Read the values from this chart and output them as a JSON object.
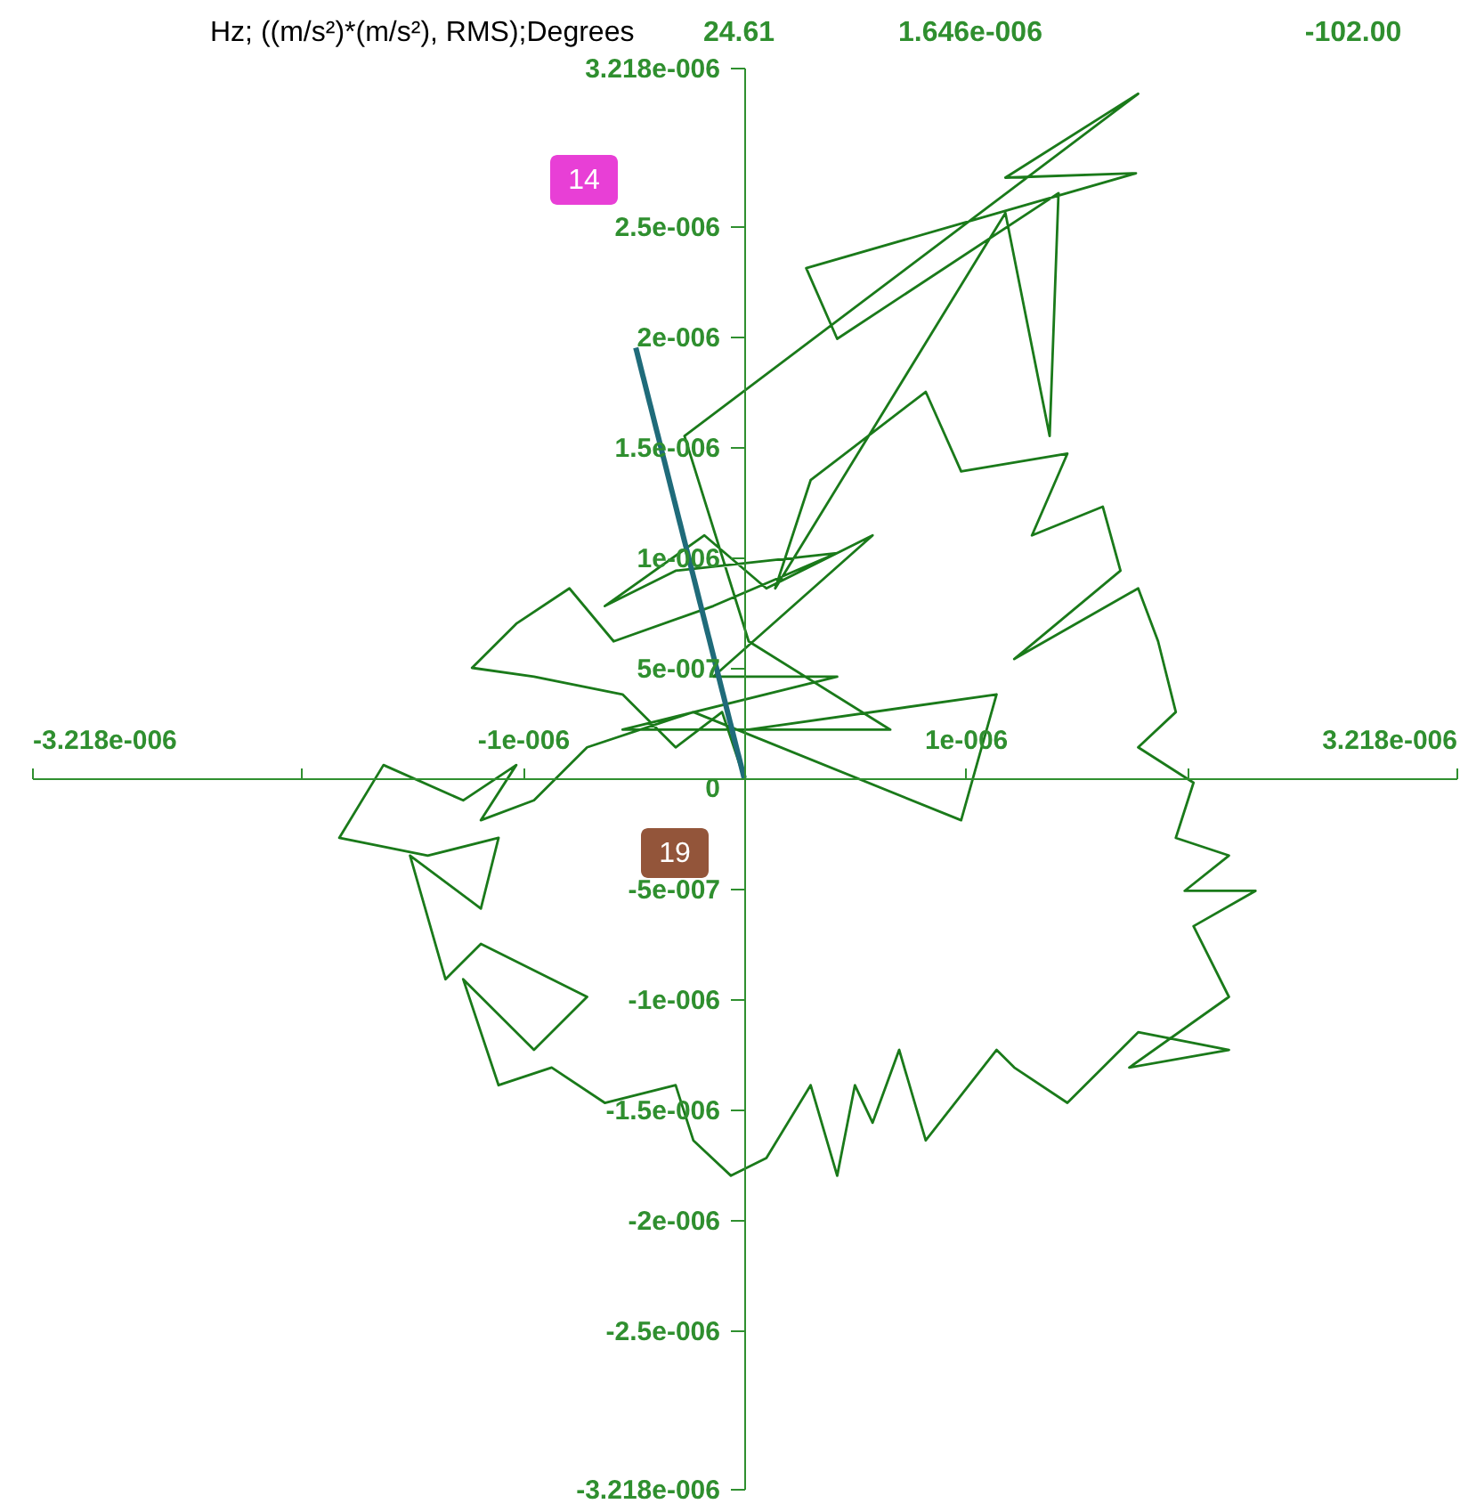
{
  "chart_data": {
    "type": "line",
    "title": "Hz; ((m/s²)*(m/s²), RMS);Degrees",
    "annotations": [
      "24.61",
      "1.646e-006",
      "-102.00",
      "14",
      "19"
    ],
    "xlim": [
      -3.218e-06,
      3.218e-06
    ],
    "xticks": [
      {
        "value": -3.218e-06,
        "label": "-3.218e-006"
      },
      {
        "value": -2e-06,
        "label": null
      },
      {
        "value": -1e-06,
        "label": "-1e-006"
      },
      {
        "value": 1e-06,
        "label": "1e-006"
      },
      {
        "value": 2e-06,
        "label": null
      },
      {
        "value": 3.218e-06,
        "label": "3.218e-006"
      }
    ],
    "ylim": [
      -3.218e-06,
      3.218e-06
    ],
    "yticks": [
      {
        "value": -3.218e-06,
        "label": "-3.218e-006"
      },
      {
        "value": -2.5e-06,
        "label": "-2.5e-006"
      },
      {
        "value": -2e-06,
        "label": "-2e-006"
      },
      {
        "value": -1.5e-06,
        "label": "-1.5e-006"
      },
      {
        "value": -1e-06,
        "label": "-1e-006"
      },
      {
        "value": -5e-07,
        "label": "-5e-007"
      },
      0,
      {
        "value": 5e-07,
        "label": "5e-007"
      },
      {
        "value": 1e-06,
        "label": "1e-006"
      },
      {
        "value": 1.5e-06,
        "label": "1.5e-006"
      },
      {
        "value": 2e-06,
        "label": "2e-006"
      },
      {
        "value": 2.5e-06,
        "label": "2.5e-006"
      },
      {
        "value": 3.218e-06,
        "label": "3.218e-006"
      }
    ],
    "grid": false,
    "series": [
      {
        "color": "#1a7a1a",
        "x": [
          0,
          -1e-07,
          -3.1e-07,
          -5.5e-07,
          -9.5e-07,
          -1.23e-06,
          -1.03e-06,
          -7.9e-07,
          -5.9e-07,
          -1.4e-07,
          4.2e-07,
          -3.1e-07,
          -6.3e-07,
          -1.8e-07,
          1e-07,
          5.8e-07,
          -1.4e-07,
          4.2e-07,
          -5.5e-07,
          6.6e-07,
          2e-08,
          -2.7e-07,
          1.78e-06,
          1.18e-06,
          1.77e-06,
          2.8e-07,
          4.2e-07,
          1.42e-06,
          1.38e-06,
          1.18e-06,
          1.4e-07,
          3e-07,
          8.2e-07,
          9.8e-07,
          1.46e-06,
          1.3e-06,
          1.62e-06,
          1.7e-06,
          1.22e-06,
          1.78e-06,
          1.87e-06,
          1.95e-06,
          1.78e-06,
          2.03e-06,
          1.95e-06,
          2.19e-06,
          1.99e-06,
          2.31e-06,
          2.03e-06,
          2.19e-06,
          1.74e-06,
          2.19e-06,
          1.78e-06,
          1.46e-06,
          1.22e-06,
          1.14e-06,
          8.2e-07,
          7e-07,
          5.8e-07,
          5e-07,
          4.2e-07,
          3e-07,
          1e-07,
          -6e-08,
          -2.3e-07,
          -3.1e-07,
          -6.3e-07,
          -8.7e-07,
          -1.11e-06,
          -1.27e-06,
          -9.5e-07,
          -7.1e-07,
          -1.19e-06,
          -1.35e-06,
          -1.51e-06,
          -1.19e-06,
          -1.11e-06,
          -1.43e-06,
          -1.83e-06,
          -1.63e-06,
          -1.27e-06,
          -1.03e-06,
          -1.19e-06,
          -9.5e-07,
          -7.1e-07,
          -2.3e-07,
          9.8e-07,
          1.14e-06,
          2e-08
        ],
        "values": [
          0,
          3e-07,
          1.4e-07,
          3.8e-07,
          4.6e-07,
          5e-07,
          7e-07,
          8.6e-07,
          6.2e-07,
          7.8e-07,
          1.02e-06,
          9.4e-07,
          7.8e-07,
          1.1e-06,
          8.6e-07,
          1.1e-06,
          4.6e-07,
          4.6e-07,
          2.2e-07,
          2.2e-07,
          6.2e-07,
          1.55e-06,
          3.1e-06,
          2.72e-06,
          2.74e-06,
          2.31e-06,
          1.99e-06,
          2.65e-06,
          1.55e-06,
          2.56e-06,
          8.6e-07,
          1.35e-06,
          1.75e-06,
          1.39e-06,
          1.47e-06,
          1.1e-06,
          1.23e-06,
          9.4e-07,
          5.4e-07,
          8.6e-07,
          6.2e-07,
          3e-07,
          1.4e-07,
          -2e-08,
          -2.7e-07,
          -3.5e-07,
          -5.1e-07,
          -5.1e-07,
          -6.7e-07,
          -9.9e-07,
          -1.31e-06,
          -1.23e-06,
          -1.15e-06,
          -1.47e-06,
          -1.31e-06,
          -1.23e-06,
          -1.64e-06,
          -1.23e-06,
          -1.56e-06,
          -1.39e-06,
          -1.8e-06,
          -1.39e-06,
          -1.72e-06,
          -1.8e-06,
          -1.64e-06,
          -1.39e-06,
          -1.47e-06,
          -1.31e-06,
          -1.39e-06,
          -9.1e-07,
          -1.23e-06,
          -9.9e-07,
          -7.5e-07,
          -9.1e-07,
          -3.5e-07,
          -5.9e-07,
          -2.7e-07,
          -3.5e-07,
          -2.7e-07,
          6e-08,
          -1e-07,
          6e-08,
          -1.9e-07,
          -1e-07,
          1.4e-07,
          3e-07,
          -1.9e-07,
          3.8e-07,
          2.2e-07
        ]
      },
      {
        "color": "#1f6b7a",
        "x": [
          0,
          -4.9e-07
        ],
        "values": [
          0,
          1.95e-06
        ]
      }
    ]
  }
}
